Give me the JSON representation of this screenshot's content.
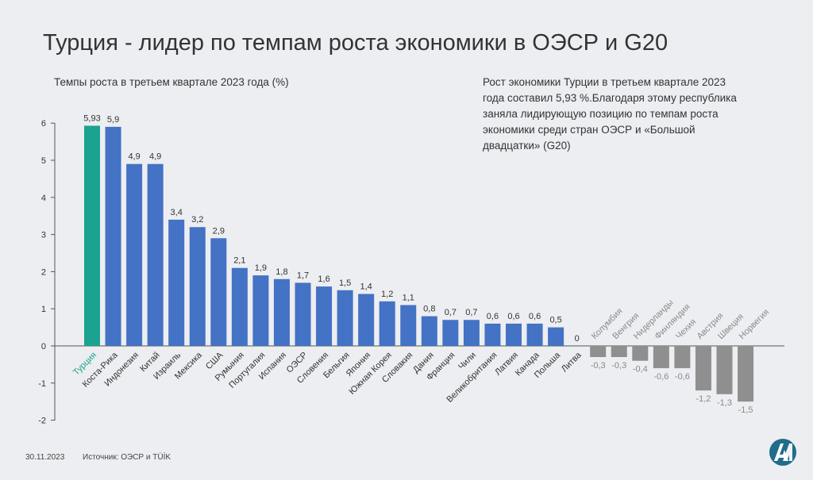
{
  "title": "Турция - лидер по темпам роста экономики в ОЭСР и G20",
  "subtitle": "Темпы роста в третьем квартале 2023 года (%)",
  "note": "Рост экономики Турции в третьем квартале 2023 года составил 5,93 %.Благодаря этому республика заняла лидирующую позицию по темпам роста экономики среди стран ОЭСР и «Большой двадцатки» (G20)",
  "footer": {
    "date": "30.11.2023",
    "source": "Источник: ОЭСР  и TÜİK"
  },
  "logo_icon": "aa-agency-logo-icon",
  "colors": {
    "highlight": "#1ca38f",
    "positive": "#4472c4",
    "negative": "#8f8f8f",
    "highlight_label": "#1ca38f",
    "negative_label": "#8a8a8a",
    "logo": "#1f6d8a"
  },
  "chart_data": {
    "type": "bar",
    "categories": [
      "Турция",
      "Коста-Рика",
      "Индонезия",
      "Китай",
      "Израиль",
      "Мексика",
      "США",
      "Румыния",
      "Португалия",
      "Испания",
      "ОЭСР",
      "Словения",
      "Бельгия",
      "Япония",
      "Южная Корея",
      "Словакия",
      "Дания",
      "Франция",
      "Чили",
      "Великобритания",
      "Латвия",
      "Канада",
      "Польша",
      "Литва",
      "Колумбия",
      "Венгрия",
      "Нидерланды",
      "Финляндия",
      "Чехия",
      "Австрия",
      "Швеция",
      "Норвегия"
    ],
    "values": [
      5.93,
      5.9,
      4.9,
      4.9,
      3.4,
      3.2,
      2.9,
      2.1,
      1.9,
      1.8,
      1.7,
      1.6,
      1.5,
      1.4,
      1.2,
      1.1,
      0.8,
      0.7,
      0.7,
      0.6,
      0.6,
      0.6,
      0.5,
      0,
      -0.3,
      -0.3,
      -0.4,
      -0.6,
      -0.6,
      -1.2,
      -1.3,
      -1.5
    ],
    "value_labels": [
      "5,93",
      "5,9",
      "4,9",
      "4,9",
      "3,4",
      "3,2",
      "2,9",
      "2,1",
      "1,9",
      "1,8",
      "1,7",
      "1,6",
      "1,5",
      "1,4",
      "1,2",
      "1,1",
      "0,8",
      "0,7",
      "0,7",
      "0,6",
      "0,6",
      "0,6",
      "0,5",
      "0",
      "-0,3",
      "-0,3",
      "-0,4",
      "-0,6",
      "-0,6",
      "-1,2",
      "-1,3",
      "-1,5"
    ],
    "highlight_index": 0,
    "yticks": [
      "6",
      "5",
      "4",
      "3",
      "2",
      "1",
      "0",
      "-1",
      "-2"
    ],
    "ylim": [
      -2,
      6
    ],
    "grid": false,
    "legend": "none"
  }
}
